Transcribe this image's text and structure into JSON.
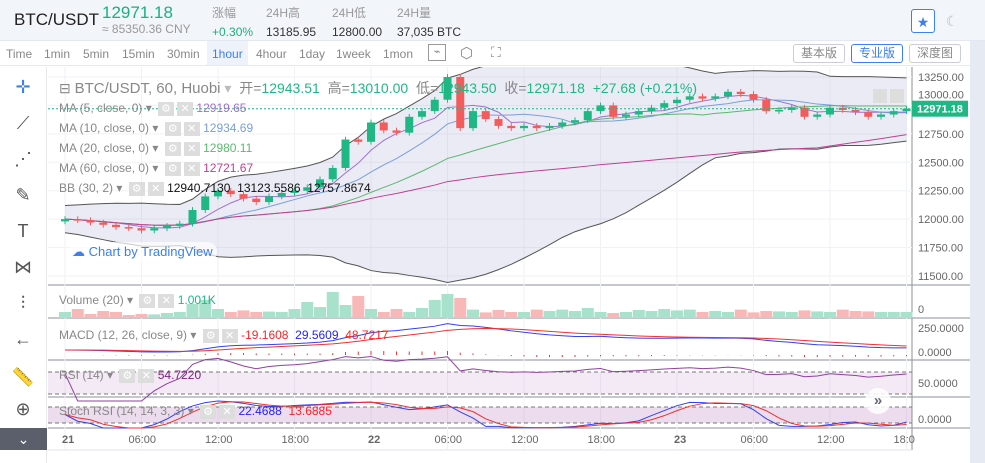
{
  "header": {
    "pair": "BTC/USDT",
    "last_price": "12971.18",
    "cny": "≈ 85350.36 CNY",
    "stats": [
      {
        "label": "涨幅",
        "value": "+0.30%"
      },
      {
        "label": "24H高",
        "value": "13185.95"
      },
      {
        "label": "24H低",
        "value": "12800.00"
      },
      {
        "label": "24H量",
        "value": "37,035 BTC"
      }
    ]
  },
  "toolbar": {
    "intervals": [
      "Time",
      "1min",
      "5min",
      "15min",
      "30min",
      "1hour",
      "4hour",
      "1day",
      "1week",
      "1mon"
    ],
    "selected": "1hour",
    "views": [
      "基本版",
      "专业版",
      "深度图"
    ],
    "selected_view": "专业版"
  },
  "legend": {
    "title": "BTC/USDT, 60, Huobi",
    "open_label": "开=",
    "open": "12943.51",
    "high_label": "高=",
    "high": "13010.00",
    "low_label": "低=",
    "low": "12943.50",
    "close_label": "收=",
    "close": "12971.18",
    "change": "+27.68 (+0.21%)",
    "ma": [
      {
        "label": "MA (5, close, 0)",
        "value": "12919.65",
        "color": "#a070d0"
      },
      {
        "label": "MA (10, close, 0)",
        "value": "12934.69",
        "color": "#7aa0d8"
      },
      {
        "label": "MA (20, close, 0)",
        "value": "12980.11",
        "color": "#5cb870"
      },
      {
        "label": "MA (60, close, 0)",
        "value": "12721.67",
        "color": "#c04090"
      }
    ],
    "bb": {
      "label": "BB (30, 2)",
      "values": [
        "12940.7130",
        "13123.5586",
        "12757.8674"
      ]
    },
    "watermark": "Chart by TradingView"
  },
  "indicators": {
    "volume": {
      "label": "Volume (20)",
      "value": "1.001K"
    },
    "macd": {
      "label": "MACD (12, 26, close, 9)",
      "values": [
        "-19.1608",
        "29.5609",
        "48.7217"
      ]
    },
    "rsi": {
      "label": "RSI (14)",
      "value": "54.7220"
    },
    "stoch": {
      "label": "Stoch RSI (14, 14, 3, 3)",
      "values": [
        "22.4688",
        "13.6885"
      ]
    }
  },
  "colors": {
    "up": "#1fb884",
    "down": "#f25c5c",
    "accent": "#3b7ff0"
  },
  "chart_data": {
    "type": "candlestick",
    "price_axis": [
      "13250.00",
      "13000.00",
      "12750.00",
      "12500.00",
      "12250.00",
      "12000.00",
      "11750.00",
      "11500.00"
    ],
    "ylim": [
      11450,
      13320
    ],
    "current_price_tag": "12971.18",
    "x_ticks": [
      "21",
      "06:00",
      "12:00",
      "18:00",
      "22",
      "06:00",
      "12:00",
      "18:00",
      "23",
      "06:00",
      "12:00",
      "18:0"
    ],
    "closes": [
      12000,
      11990,
      11970,
      11950,
      11930,
      11920,
      11900,
      11920,
      11940,
      11960,
      12080,
      12200,
      12250,
      12220,
      12180,
      12150,
      12200,
      12230,
      12250,
      12280,
      12350,
      12450,
      12700,
      12680,
      12850,
      12780,
      12760,
      12900,
      12950,
      13050,
      13250,
      12800,
      12950,
      12880,
      12820,
      12800,
      12820,
      12800,
      12820,
      12850,
      12870,
      12950,
      13000,
      12900,
      12920,
      12950,
      12980,
      13020,
      13050,
      13080,
      13060,
      13080,
      13120,
      13100,
      13050,
      12950,
      12960,
      12980,
      12900,
      12920,
      12980,
      12960,
      12940,
      12900,
      12920,
      12950,
      12971.18
    ],
    "volume": [
      300,
      450,
      200,
      350,
      300,
      150,
      200,
      180,
      250,
      300,
      700,
      900,
      450,
      300,
      380,
      300,
      320,
      300,
      450,
      800,
      550,
      1300,
      650,
      1100,
      450,
      300,
      450,
      300,
      500,
      900,
      1200,
      1000,
      420,
      280,
      400,
      300,
      300,
      420,
      350,
      420,
      350,
      500,
      300,
      250,
      300,
      400,
      350,
      450,
      380,
      420,
      300,
      350,
      300,
      420,
      280,
      350,
      330,
      300,
      380,
      330,
      300,
      420,
      350,
      330,
      300,
      300,
      300
    ],
    "indicator_axes": {
      "macd": [
        "250.0000",
        "0.0000"
      ],
      "rsi": [
        "50.0000"
      ],
      "stoch": [
        "0.0000"
      ],
      "volume": [
        "0"
      ]
    }
  }
}
